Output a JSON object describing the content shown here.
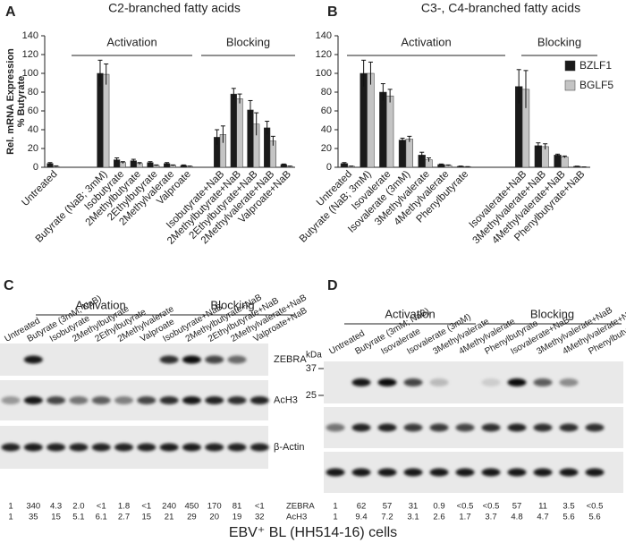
{
  "chart_data": [
    {
      "type": "bar",
      "panel": "A",
      "title": "C2-branched fatty acids",
      "y_label": [
        "Rel. mRNA Expression",
        "% Butyrate"
      ],
      "categories": [
        "Untreated",
        null,
        null,
        "Butyrate (NaB; 3mM)",
        "Isobutyrate",
        "2Methylbutyrate",
        "2Ethylbutyrate",
        "2Methylvalerate",
        "Valproate",
        null,
        "Isobutyrate+NaB",
        "2Methylbutyrate+NaB",
        "2Ethylbutyrate+NaB",
        "2Methylvalerate+NaB",
        "Valproate+NaB"
      ],
      "series": [
        {
          "color": "#1a1a1a",
          "values": [
            4,
            null,
            null,
            100,
            8,
            7,
            5,
            4,
            2,
            null,
            32,
            78,
            61,
            42,
            3
          ],
          "errors": [
            1,
            null,
            null,
            14,
            2,
            1.5,
            1,
            1,
            0.5,
            null,
            8,
            6,
            10,
            7,
            0.5
          ]
        },
        {
          "color": "#c4c4c4",
          "values": [
            1,
            null,
            null,
            99,
            5,
            4,
            2,
            2,
            1,
            null,
            35,
            73,
            46,
            28,
            1
          ],
          "errors": [
            0.5,
            null,
            null,
            11,
            1,
            1,
            0.5,
            0.5,
            0.3,
            null,
            9,
            5,
            12,
            5,
            0.3
          ]
        }
      ],
      "annotations": [
        "Activation",
        "Blocking"
      ],
      "ylim": [
        0,
        140
      ],
      "yticks": [
        0,
        20,
        40,
        60,
        80,
        100,
        120,
        140
      ]
    },
    {
      "type": "bar",
      "panel": "B",
      "title": "C3-, C4-branched fatty acids",
      "categories": [
        "Untreated",
        "Butyrate (NaB; 3mM)",
        "Isovalerate",
        "Isovalerate (3mM)",
        "3Methylvalerate",
        "4Methylvalerate",
        "Phenylbutyrate",
        null,
        null,
        "Isovalerate+NaB",
        "3Methylvalerate+NaB",
        "4Methylvalerate+NaB",
        "Phenylbutyrate+NaB"
      ],
      "series": [
        {
          "name": "BZLF1",
          "color": "#1a1a1a",
          "values": [
            4,
            100,
            80,
            29,
            13,
            3,
            1,
            null,
            null,
            86,
            23,
            13,
            1
          ],
          "errors": [
            1,
            14,
            9,
            2,
            3,
            0.5,
            0.3,
            null,
            null,
            18,
            3,
            1,
            0.2
          ]
        },
        {
          "name": "BGLF5",
          "color": "#c4c4c4",
          "values": [
            1,
            100,
            76,
            30,
            8,
            2,
            0.5,
            null,
            null,
            83,
            22,
            11,
            0.3
          ],
          "errors": [
            0.3,
            12,
            7,
            3,
            2,
            0.5,
            0.2,
            null,
            null,
            20,
            3,
            1,
            0.1
          ]
        }
      ],
      "annotations": [
        "Activation",
        "Blocking"
      ],
      "legend": "upper right",
      "ylim": [
        0,
        140
      ],
      "yticks": [
        0,
        20,
        40,
        60,
        80,
        100,
        120,
        140
      ]
    }
  ],
  "blots": [
    {
      "panel": "C",
      "groups": [
        "Activation",
        "Blocking"
      ],
      "lanes": [
        "Untreated",
        "Butyrate (3mM; NaB)",
        "Isobutyrate",
        "2Methylbutyrate",
        "2Ethylbutyrate",
        "2Methylvalerate",
        "Valproate",
        "Isobutyrate+NaB",
        "2Methylbutyrate+NaB",
        "2Ethylbutyrate+NaB",
        "2Methylvalerate+NaB",
        "Valproate+NaB"
      ],
      "rows": [
        "ZEBRA",
        "AcH3",
        "β-Actin"
      ],
      "quantification": [
        [
          "1",
          "340",
          "4.3",
          "2.0",
          "<1",
          "1.8",
          "<1",
          "240",
          "450",
          "170",
          "81",
          "<1"
        ],
        [
          "1",
          "35",
          "15",
          "5.1",
          "6.1",
          "2.7",
          "15",
          "21",
          "29",
          "20",
          "19",
          "32"
        ]
      ]
    },
    {
      "panel": "D",
      "groups": [
        "Activation",
        "Blocking"
      ],
      "lanes": [
        "Untreated",
        "Butyrate (3mM; NaB)",
        "Isovalerate",
        "Isovalerate (3mM)",
        "3Methylvalerate",
        "4Methylvalerate",
        "Phenylbutyrate",
        "Isovalerate+NaB",
        "3Methylvalerate+NaB",
        "4Methylvalerate+NaB",
        "Phenylbutyrate+NaB"
      ],
      "markers": {
        "unit": "kDa",
        "sizes": [
          "37",
          "25"
        ]
      },
      "quantification_labels": [
        "ZEBRA",
        "AcH3"
      ],
      "quantification": [
        [
          "1",
          "62",
          "57",
          "31",
          "0.9",
          "<0.5",
          "<0.5",
          "57",
          "11",
          "3.5",
          "<0.5"
        ],
        [
          "1",
          "9.4",
          "7.2",
          "3.1",
          "2.6",
          "1.7",
          "3.7",
          "4.8",
          "4.7",
          "5.6",
          "5.6"
        ]
      ]
    }
  ],
  "caption": "EBV⁺ BL (HH514-16) cells"
}
